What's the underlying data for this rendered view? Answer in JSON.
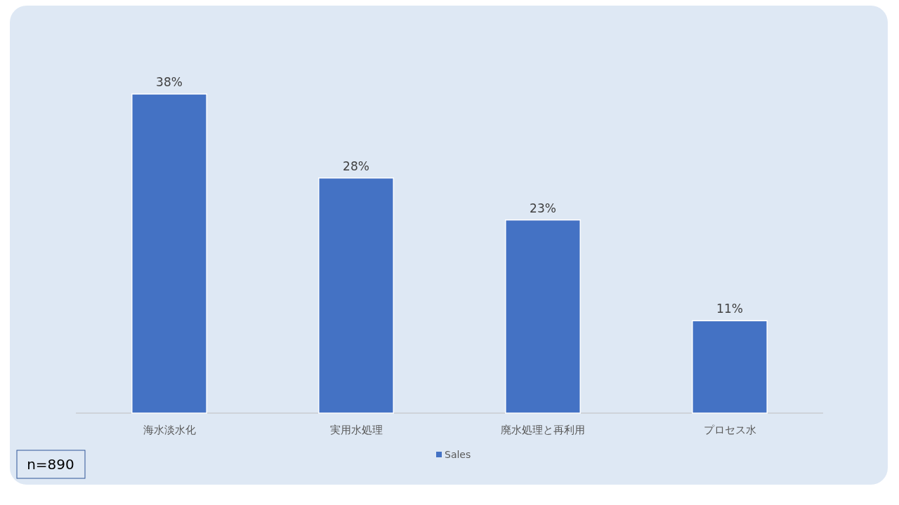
{
  "chart_data": {
    "type": "bar",
    "categories": [
      "海水淡水化",
      "実用水処理",
      "廃水処理と再利用",
      "プロセス水"
    ],
    "series": [
      {
        "name": "Sales",
        "color": "#4472c4",
        "values": [
          38,
          28,
          23,
          11
        ],
        "value_labels": [
          "38%",
          "28%",
          "23%",
          "11%"
        ]
      }
    ],
    "legend": "bottom",
    "annotations": [
      "n=890"
    ]
  }
}
